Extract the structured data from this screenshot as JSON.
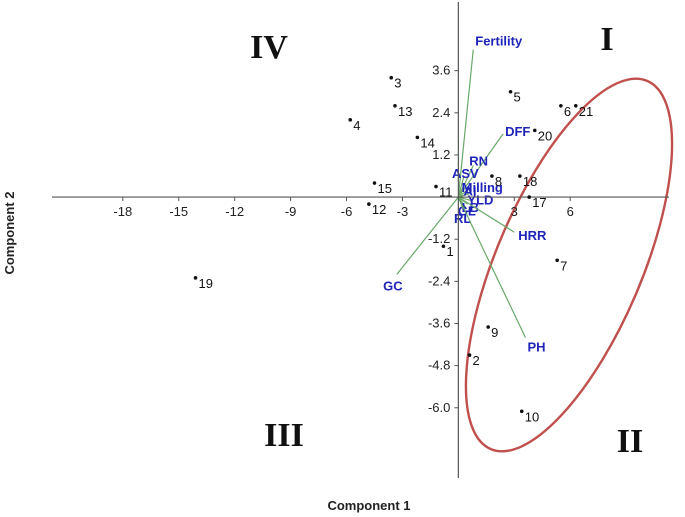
{
  "chart_data": {
    "type": "scatter",
    "subtype": "pca-biplot",
    "title": "",
    "xlabel": "Component 1",
    "ylabel": "Component 2",
    "xlim": [
      -21.8,
      11.3
    ],
    "ylim": [
      -8.0,
      5.1
    ],
    "x_ticks": [
      -18,
      -15,
      -12,
      -9,
      -6,
      -3,
      3,
      6
    ],
    "x_tick_labels": [
      "-18",
      "-15",
      "-12",
      "-9",
      "-6",
      "-3",
      "3",
      "6"
    ],
    "y_ticks": [
      3.6,
      2.4,
      1.2,
      -1.2,
      -2.4,
      -3.6,
      -4.8,
      -6.0
    ],
    "y_tick_labels": [
      "3.6",
      "2.4",
      "1.2",
      "-1.2",
      "-2.4",
      "-3.6",
      "-4.8",
      "-6.0"
    ],
    "grid": false,
    "points": [
      {
        "label": "1",
        "x": -0.8,
        "y": -1.4
      },
      {
        "label": "2",
        "x": 0.6,
        "y": -4.5
      },
      {
        "label": "3",
        "x": -3.6,
        "y": 3.4
      },
      {
        "label": "4",
        "x": -5.8,
        "y": 2.2
      },
      {
        "label": "5",
        "x": 2.8,
        "y": 3.0
      },
      {
        "label": "6",
        "x": 5.5,
        "y": 2.6
      },
      {
        "label": "7",
        "x": 5.3,
        "y": -1.8
      },
      {
        "label": "8",
        "x": 1.8,
        "y": 0.6
      },
      {
        "label": "9",
        "x": 1.6,
        "y": -3.7
      },
      {
        "label": "10",
        "x": 3.4,
        "y": -6.1
      },
      {
        "label": "11",
        "x": -1.2,
        "y": 0.3
      },
      {
        "label": "12",
        "x": -4.8,
        "y": -0.2
      },
      {
        "label": "13",
        "x": -3.4,
        "y": 2.6
      },
      {
        "label": "14",
        "x": -2.2,
        "y": 1.7
      },
      {
        "label": "15",
        "x": -4.5,
        "y": 0.4
      },
      {
        "label": "17",
        "x": 3.8,
        "y": 0.0
      },
      {
        "label": "18",
        "x": 3.3,
        "y": 0.6
      },
      {
        "label": "19",
        "x": -14.1,
        "y": -2.3
      },
      {
        "label": "20",
        "x": 4.1,
        "y": 1.9
      },
      {
        "label": "21",
        "x": 6.3,
        "y": 2.6
      }
    ],
    "loadings": [
      {
        "label": "Fertility",
        "x": 0.8,
        "y": 4.2
      },
      {
        "label": "DFF",
        "x": 2.4,
        "y": 1.8
      },
      {
        "label": "RN",
        "x": 0.8,
        "y": 0.9
      },
      {
        "label": "ASV",
        "x": 0.3,
        "y": 0.6
      },
      {
        "label": "Milling",
        "x": 0.5,
        "y": 0.2
      },
      {
        "label": "AI",
        "x": 0.6,
        "y": 0.1
      },
      {
        "label": "YLD",
        "x": 0.7,
        "y": -0.1
      },
      {
        "label": "GL",
        "x": 0.4,
        "y": -0.3
      },
      {
        "label": "RL",
        "x": 0.3,
        "y": -0.4
      },
      {
        "label": "LB",
        "x": 0.5,
        "y": -0.2
      },
      {
        "label": "HRR",
        "x": 3.0,
        "y": -1.0
      },
      {
        "label": "PH",
        "x": 3.6,
        "y": -4.0
      },
      {
        "label": "GC",
        "x": -3.3,
        "y": -2.2
      }
    ],
    "quadrant_labels": [
      "I",
      "II",
      "III",
      "IV"
    ],
    "highlight_group": {
      "shape": "ellipse",
      "color": "#c0504d",
      "members": [
        "2",
        "5",
        "6",
        "7",
        "8",
        "9",
        "10",
        "17",
        "18",
        "20",
        "21"
      ]
    },
    "colors": {
      "points": "#111111",
      "loading_lines": "#6aa86a",
      "loading_labels": "#1f24b8",
      "axes": "#555555",
      "ellipse": "#c0504d"
    }
  }
}
